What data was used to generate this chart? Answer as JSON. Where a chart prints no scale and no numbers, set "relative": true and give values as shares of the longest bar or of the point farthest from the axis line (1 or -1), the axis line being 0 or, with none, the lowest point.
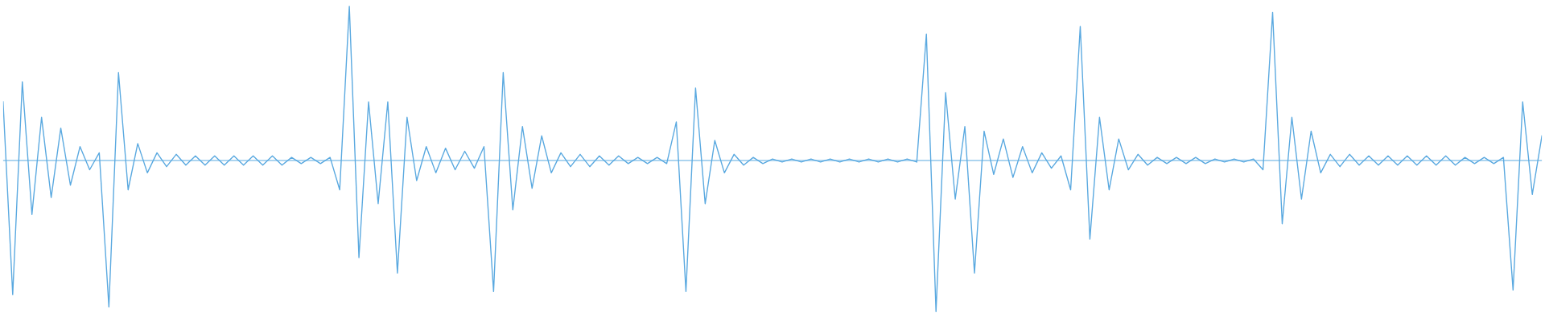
{
  "chart_data": {
    "type": "line",
    "relative": true,
    "color": "#5aa9e0",
    "ref_lines": [
      {
        "axis": "y",
        "value": 0,
        "color": "#5aa9e0"
      }
    ],
    "categories": [
      null,
      null,
      null,
      null,
      null,
      null,
      null,
      null,
      null,
      null,
      null,
      null,
      null,
      null,
      null,
      null,
      null,
      null,
      null,
      null,
      null,
      null,
      null,
      null,
      null,
      null,
      null,
      null,
      null,
      null,
      null,
      null,
      null,
      null,
      null,
      null,
      null,
      null,
      null,
      null,
      null,
      null,
      null,
      null,
      null,
      null,
      null,
      null,
      null,
      null,
      null,
      null,
      null,
      null,
      null,
      null,
      null,
      null,
      null,
      null,
      null,
      null,
      null,
      null,
      null,
      null,
      null,
      null,
      null,
      null,
      null,
      null,
      null,
      null,
      null,
      null,
      null,
      null,
      null,
      null,
      null,
      null,
      null,
      null,
      null,
      null,
      null,
      null,
      null,
      null,
      null,
      null,
      null,
      null,
      null,
      null,
      null,
      null,
      null,
      null,
      null,
      null,
      null,
      null,
      null,
      null,
      null,
      null,
      null,
      null,
      null,
      null,
      null,
      null,
      null,
      null,
      null,
      null,
      null,
      null,
      null,
      null,
      null,
      null,
      null,
      null,
      null,
      null,
      null,
      null,
      null,
      null,
      null,
      null,
      null,
      null,
      null,
      null,
      null,
      null,
      null,
      null,
      null,
      null,
      null,
      null,
      null,
      null,
      null,
      null,
      null,
      null,
      null,
      null,
      null,
      null,
      null,
      null,
      null,
      null,
      null
    ],
    "values": [
      0.38,
      -0.87,
      0.51,
      -0.35,
      0.28,
      -0.24,
      0.21,
      -0.16,
      0.09,
      -0.06,
      0.05,
      -0.95,
      0.57,
      -0.19,
      0.11,
      -0.08,
      0.05,
      -0.04,
      0.04,
      -0.03,
      0.03,
      -0.03,
      0.03,
      -0.03,
      0.03,
      -0.03,
      0.03,
      -0.03,
      0.03,
      -0.03,
      0.02,
      -0.02,
      0.02,
      -0.02,
      0.02,
      -0.19,
      1,
      -0.63,
      0.38,
      -0.28,
      0.38,
      -0.73,
      0.28,
      -0.13,
      0.09,
      -0.08,
      0.08,
      -0.06,
      0.06,
      -0.05,
      0.09,
      -0.85,
      0.57,
      -0.32,
      0.22,
      -0.18,
      0.16,
      -0.08,
      0.05,
      -0.04,
      0.04,
      -0.04,
      0.03,
      -0.03,
      0.03,
      -0.02,
      0.02,
      -0.02,
      0.02,
      -0.02,
      0.25,
      -0.85,
      0.47,
      -0.28,
      0.13,
      -0.08,
      0.04,
      -0.03,
      0.02,
      -0.02,
      0.01,
      -0.01,
      0.01,
      -0.01,
      0.01,
      -0.01,
      0.01,
      -0.01,
      0.01,
      -0.01,
      0.01,
      -0.01,
      0.01,
      -0.01,
      0.01,
      -0.01,
      0.82,
      -0.98,
      0.44,
      -0.25,
      0.22,
      -0.73,
      0.19,
      -0.09,
      0.14,
      -0.11,
      0.09,
      -0.08,
      0.05,
      -0.05,
      0.03,
      -0.19,
      0.87,
      -0.51,
      0.28,
      -0.19,
      0.14,
      -0.06,
      0.04,
      -0.03,
      0.02,
      -0.02,
      0.02,
      -0.02,
      0.02,
      -0.02,
      0.01,
      -0.01,
      0.01,
      -0.01,
      0.01,
      -0.06,
      0.96,
      -0.41,
      0.28,
      -0.25,
      0.19,
      -0.08,
      0.04,
      -0.04,
      0.04,
      -0.03,
      0.03,
      -0.03,
      0.03,
      -0.03,
      0.03,
      -0.03,
      0.03,
      -0.03,
      0.03,
      -0.03,
      0.02,
      -0.02,
      0.02,
      -0.02,
      0.02,
      -0.84,
      0.38,
      -0.22,
      0.16
    ]
  }
}
